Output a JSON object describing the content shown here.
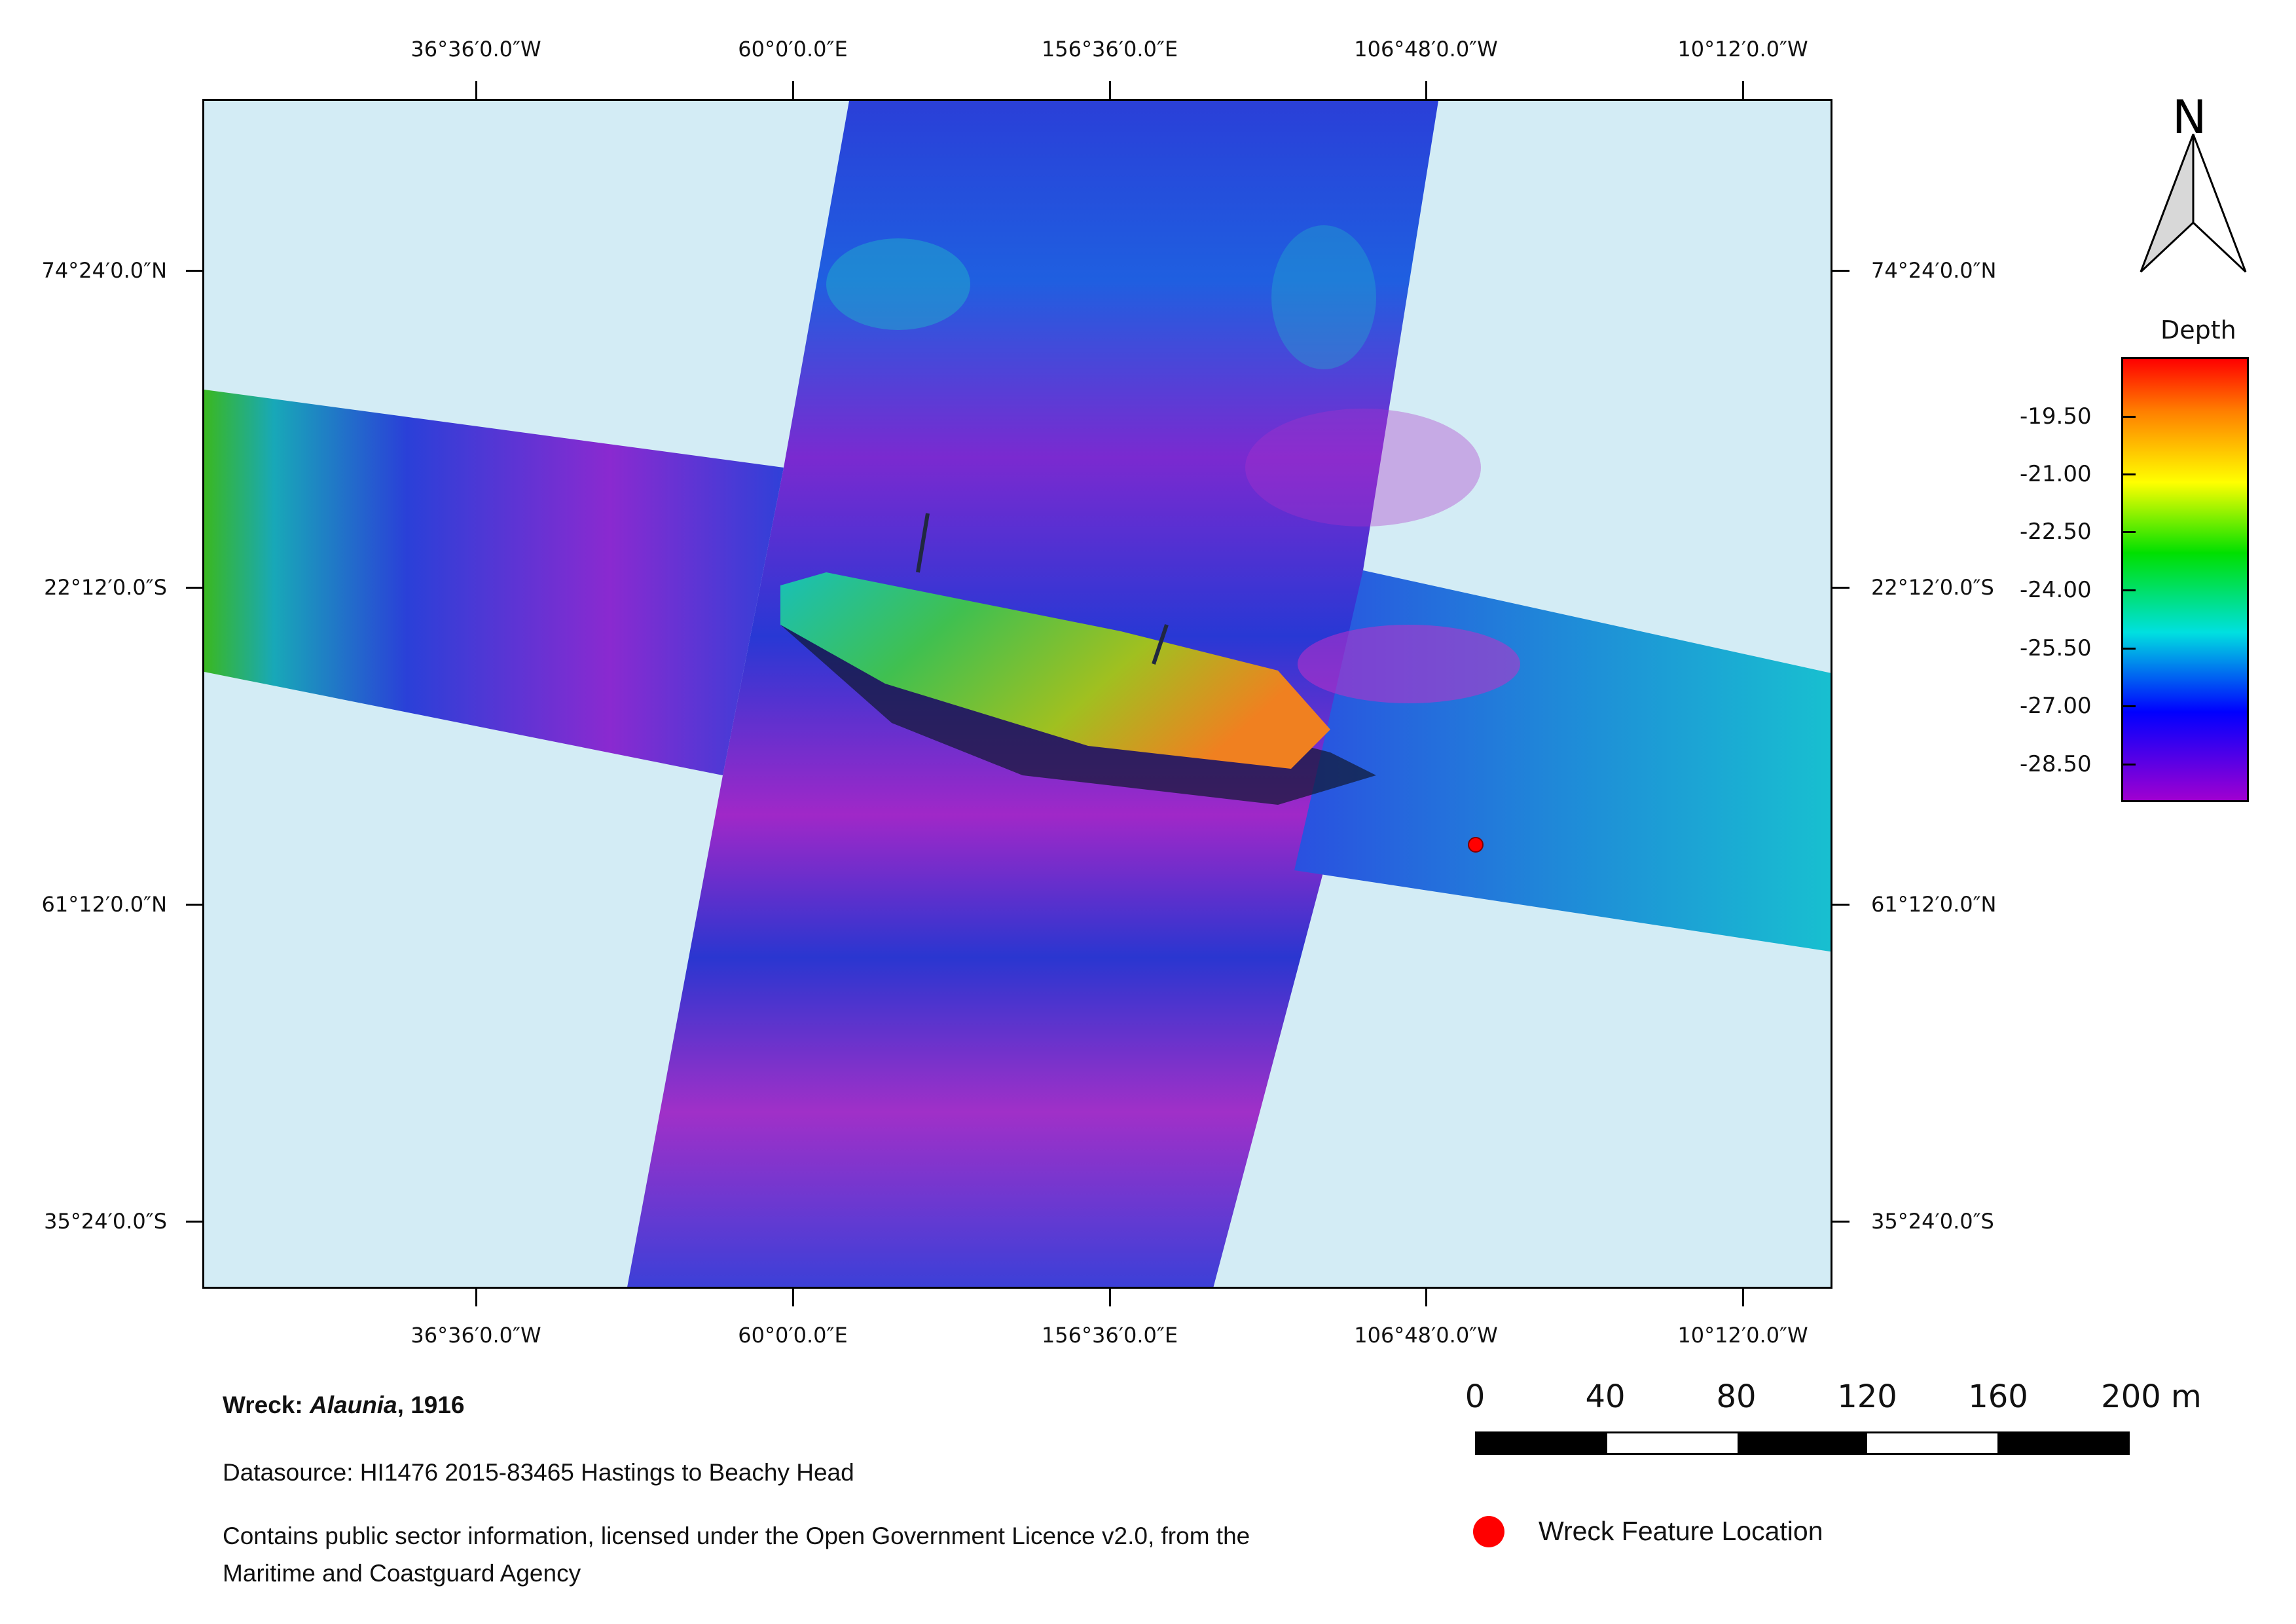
{
  "map": {
    "lon_labels": [
      "36°36′0.0″W",
      "60°0′0.0″E",
      "156°36′0.0″E",
      "106°48′0.0″W",
      "10°12′0.0″W"
    ],
    "lat_labels": [
      "74°24′0.0″N",
      "22°12′0.0″S",
      "61°12′0.0″N",
      "35°24′0.0″S"
    ],
    "background_color": "#d3ecf5"
  },
  "north_arrow": {
    "label": "N"
  },
  "legend": {
    "title": "Depth",
    "ticks": [
      "-19.50",
      "-21.00",
      "-22.50",
      "-24.00",
      "-25.50",
      "-27.00",
      "-28.50"
    ],
    "colors": [
      "#ff0000",
      "#ff8000",
      "#ffff00",
      "#00e000",
      "#00e0e0",
      "#0000ff",
      "#a000d0"
    ]
  },
  "wreck_marker": {
    "color": "#ff0000"
  },
  "scale_bar": {
    "labels": [
      "0",
      "40",
      "80",
      "120",
      "160",
      "200 m"
    ]
  },
  "footer": {
    "wreck_prefix": "Wreck: ",
    "wreck_name": "Alaunia",
    "wreck_year": ", 1916",
    "datasource": "Datasource: HI1476 2015-83465 Hastings to Beachy Head",
    "licence_line1": "Contains public sector information, licensed under the Open Government Licence v2.0, from the",
    "licence_line2": "Maritime and Coastguard Agency"
  },
  "marker_legend": {
    "label": "Wreck Feature Location",
    "color": "#ff0000"
  }
}
